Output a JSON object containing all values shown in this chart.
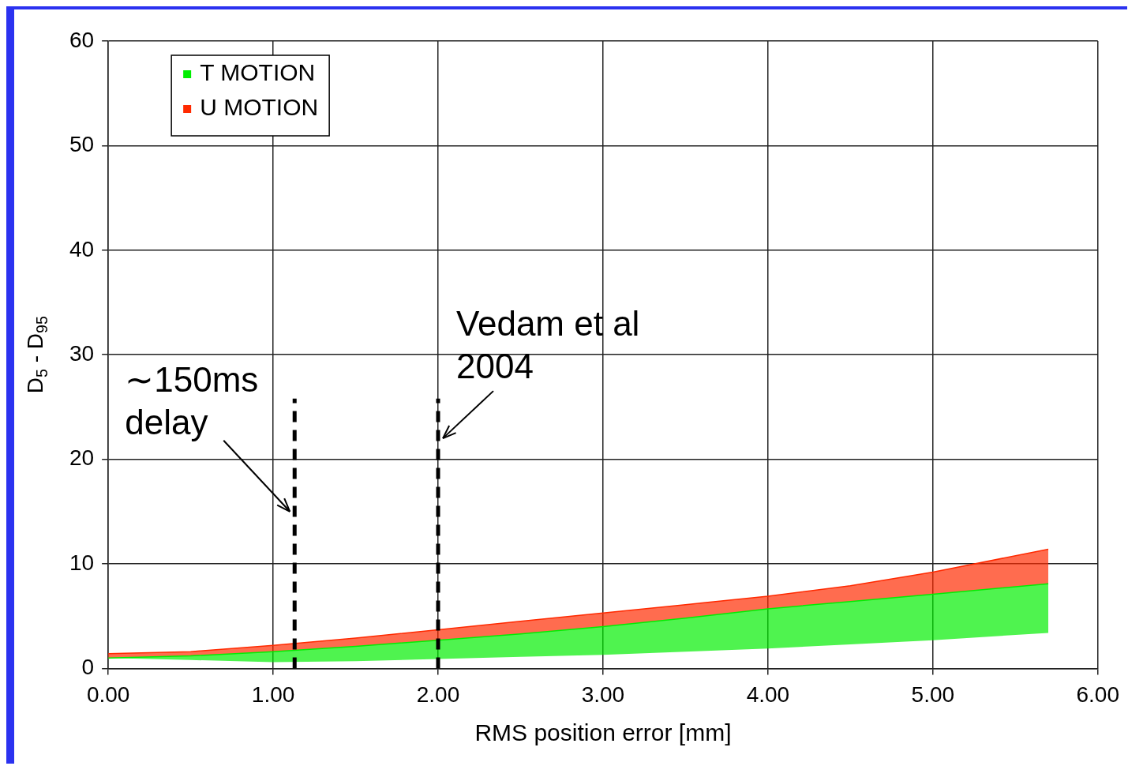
{
  "chart_data": {
    "type": "line",
    "marker": "none",
    "xlabel": "RMS position error [mm]",
    "ylabel": "D$_{5}$ - D$_{95}$",
    "x": [
      0,
      0.5,
      1,
      1.5,
      2,
      2.5,
      3,
      3.5,
      4,
      4.5,
      5,
      5.7
    ],
    "series": [
      {
        "name": "T MOTION",
        "color": "#00ee00",
        "lower": [
          1.0,
          0.8,
          0.6,
          0.7,
          0.9,
          1.1,
          1.3,
          1.6,
          1.9,
          2.3,
          2.7,
          3.4
        ],
        "upper": [
          1.0,
          1.2,
          1.6,
          2.1,
          2.7,
          3.3,
          4.0,
          4.8,
          5.7,
          6.4,
          7.1,
          8.1
        ],
        "values": [
          1.0,
          1.2,
          1.6,
          2.1,
          2.7,
          3.3,
          4.0,
          4.8,
          5.7,
          6.4,
          7.1,
          8.1
        ]
      },
      {
        "name": "U MOTION",
        "color": "#ff2a00",
        "lower": [
          1.0,
          1.2,
          1.6,
          2.1,
          2.7,
          3.3,
          4.0,
          4.8,
          5.7,
          6.4,
          7.1,
          8.1
        ],
        "upper": [
          1.4,
          1.6,
          2.2,
          2.9,
          3.7,
          4.5,
          5.3,
          6.1,
          6.9,
          7.9,
          9.2,
          11.4
        ],
        "values": [
          1.4,
          1.6,
          2.2,
          2.9,
          3.7,
          4.5,
          5.3,
          6.1,
          6.9,
          7.9,
          9.2,
          11.4
        ]
      }
    ],
    "xlim": [
      0,
      6
    ],
    "xticks": [
      {
        "value": 0,
        "label": "0.00"
      },
      {
        "value": 1,
        "label": "1.00"
      },
      {
        "value": 2,
        "label": "2.00"
      },
      {
        "value": 3,
        "label": "3.00"
      },
      {
        "value": 4,
        "label": "4.00"
      },
      {
        "value": 5,
        "label": "5.00"
      },
      {
        "value": 6,
        "label": "6.00"
      }
    ],
    "ylim": [
      0,
      60
    ],
    "yticks": [
      0,
      10,
      20,
      30,
      40,
      50,
      60
    ],
    "ref_lines": [
      {
        "axis": "x",
        "value": 1.13,
        "color": "#000000",
        "line_style": "dashed"
      },
      {
        "axis": "x",
        "value": 2.0,
        "color": "#000000",
        "line_style": "dashed"
      }
    ],
    "annotations": [
      {
        "text": "∼150ms\ndelay",
        "x": 1.13,
        "y": 15
      },
      {
        "text": "Vedam et al\n2004",
        "x": 2.0,
        "y": 22
      }
    ],
    "grid": true,
    "legend": "top left"
  }
}
